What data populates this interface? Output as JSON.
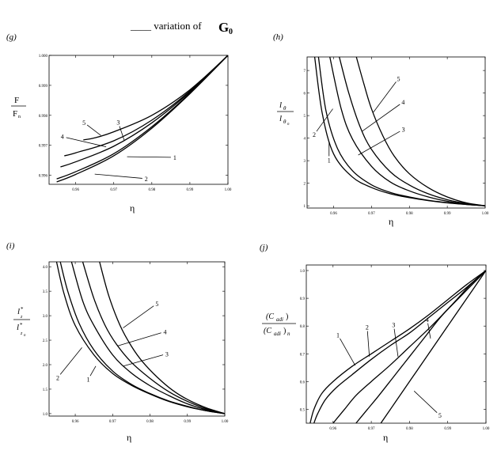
{
  "figure_title": {
    "prefix": "____ variation of ",
    "symbol": "G",
    "subscript": "0"
  },
  "chart_data": [
    {
      "panel": "(g)",
      "type": "line",
      "xlabel": "η",
      "ylabel_num": "F",
      "ylabel_den": "F",
      "ylabel_den_sub": "n",
      "xlim": [
        0.953,
        1.0
      ],
      "ylim": [
        0.9957,
        1.0
      ],
      "xticks": [
        0.96,
        0.97,
        0.98,
        0.99,
        1.0
      ],
      "xtick_labels": [
        "0.96",
        "0.97",
        "0.98",
        "0.99",
        "1.00"
      ],
      "yticks": [
        0.996,
        0.997,
        0.998,
        0.999,
        1.0
      ],
      "ytick_labels": [
        "0.996",
        "0.997",
        "0.998",
        "0.999",
        "1.000"
      ],
      "series": [
        {
          "name": "1",
          "x": [
            0.955,
            0.96,
            0.97,
            0.98,
            0.99,
            1.0
          ],
          "y": [
            0.99588,
            0.99612,
            0.99672,
            0.99762,
            0.99874,
            1.0
          ]
        },
        {
          "name": "2",
          "x": [
            0.955,
            0.96,
            0.97,
            0.98,
            0.99,
            1.0
          ],
          "y": [
            0.99578,
            0.99603,
            0.99665,
            0.99757,
            0.99872,
            1.0
          ]
        },
        {
          "name": "3",
          "x": [
            0.956,
            0.96,
            0.97,
            0.98,
            0.99,
            1.0
          ],
          "y": [
            0.99628,
            0.99645,
            0.99697,
            0.99775,
            0.99878,
            1.0
          ]
        },
        {
          "name": "4",
          "x": [
            0.957,
            0.96,
            0.97,
            0.98,
            0.99,
            1.0
          ],
          "y": [
            0.99665,
            0.99675,
            0.99715,
            0.99784,
            0.99881,
            1.0
          ]
        },
        {
          "name": "5",
          "x": [
            0.962,
            0.965,
            0.97,
            0.98,
            0.99,
            1.0
          ],
          "y": [
            0.99718,
            0.99725,
            0.99745,
            0.998,
            0.99885,
            1.0
          ]
        }
      ],
      "labels": [
        {
          "text": "1",
          "x": 0.985,
          "y": 0.9966,
          "tx": 0.9735,
          "ty": 0.99662
        },
        {
          "text": "2",
          "x": 0.9775,
          "y": 0.9959,
          "tx": 0.965,
          "ty": 0.99604
        },
        {
          "text": "3",
          "x": 0.9715,
          "y": 0.99764,
          "tx": 0.9728,
          "ty": 0.99715
        },
        {
          "text": "4",
          "x": 0.9575,
          "y": 0.99726,
          "tx": 0.968,
          "ty": 0.99695
        },
        {
          "text": "5",
          "x": 0.963,
          "y": 0.99768,
          "tx": 0.9666,
          "ty": 0.99733
        }
      ]
    },
    {
      "panel": "(h)",
      "type": "line",
      "xlabel": "η",
      "ylabel_num": "l",
      "ylabel_num_sub": "θ",
      "ylabel_den": "l",
      "ylabel_den_sub": "θ",
      "ylabel_den_subsub": "n",
      "xlim": [
        0.953,
        1.0
      ],
      "ylim": [
        0.9,
        7.6
      ],
      "xticks": [
        0.96,
        0.97,
        0.98,
        0.99,
        1.0
      ],
      "xtick_labels": [
        "0.96",
        "0.97",
        "0.98",
        "0.99",
        "1.00"
      ],
      "yticks": [
        1,
        2,
        3,
        4,
        5,
        6,
        7
      ],
      "ytick_labels": [
        "1",
        "2",
        "3",
        "4",
        "5",
        "6",
        "7"
      ],
      "series": [
        {
          "name": "1",
          "x": [
            0.955,
            0.957,
            0.96,
            0.965,
            0.97,
            0.975,
            0.98,
            0.985,
            0.99,
            0.995,
            1.0
          ],
          "y": [
            7.6,
            5.1,
            3.3,
            2.27,
            1.81,
            1.53,
            1.36,
            1.23,
            1.13,
            1.06,
            1.0
          ]
        },
        {
          "name": "2",
          "x": [
            0.956,
            0.958,
            0.961,
            0.965,
            0.97,
            0.975,
            0.98,
            0.985,
            0.99,
            0.995,
            1.0
          ],
          "y": [
            7.6,
            5.2,
            3.55,
            2.55,
            1.93,
            1.59,
            1.39,
            1.24,
            1.14,
            1.06,
            1.0
          ]
        },
        {
          "name": "3",
          "x": [
            0.959,
            0.962,
            0.965,
            0.97,
            0.975,
            0.98,
            0.985,
            0.99,
            0.995,
            1.0
          ],
          "y": [
            7.6,
            5.3,
            3.95,
            2.75,
            2.05,
            1.66,
            1.39,
            1.2,
            1.08,
            1.0
          ]
        },
        {
          "name": "4",
          "x": [
            0.9615,
            0.964,
            0.967,
            0.97,
            0.975,
            0.98,
            0.985,
            0.99,
            0.995,
            1.0
          ],
          "y": [
            7.6,
            6.0,
            4.5,
            3.5,
            2.5,
            1.92,
            1.53,
            1.27,
            1.1,
            1.0
          ]
        },
        {
          "name": "5",
          "x": [
            0.966,
            0.968,
            0.97,
            0.973,
            0.976,
            0.98,
            0.985,
            0.99,
            0.995,
            1.0
          ],
          "y": [
            7.6,
            6.4,
            5.3,
            4.1,
            3.2,
            2.42,
            1.8,
            1.39,
            1.13,
            1.0
          ]
        }
      ],
      "labels": [
        {
          "text": "1",
          "x": 0.9588,
          "y": 3.2,
          "tx": 0.9588,
          "ty": 3.85
        },
        {
          "text": "2",
          "x": 0.9555,
          "y": 4.3,
          "tx": 0.9598,
          "ty": 5.3
        },
        {
          "text": "3",
          "x": 0.9775,
          "y": 4.3,
          "tx": 0.9665,
          "ty": 3.25
        },
        {
          "text": "4",
          "x": 0.9775,
          "y": 5.5,
          "tx": 0.9675,
          "ty": 4.3
        },
        {
          "text": "5",
          "x": 0.9765,
          "y": 6.5,
          "tx": 0.9705,
          "ty": 5.15
        }
      ]
    },
    {
      "panel": "(i)",
      "type": "line",
      "xlabel": "η",
      "ylabel_num": "l",
      "ylabel_num_sup": "*",
      "ylabel_num_sub": "z",
      "ylabel_den": "l",
      "ylabel_den_sup": "*",
      "ylabel_den_sub": "z",
      "ylabel_den_subsub": "n",
      "xlim": [
        0.953,
        1.0
      ],
      "ylim": [
        0.95,
        4.1
      ],
      "xticks": [
        0.96,
        0.97,
        0.98,
        0.99,
        1.0
      ],
      "xtick_labels": [
        "0.96",
        "0.97",
        "0.98",
        "0.99",
        "1.00"
      ],
      "yticks": [
        1.0,
        1.5,
        2.0,
        2.5,
        3.0,
        3.5,
        4.0
      ],
      "ytick_labels": [
        "1.0",
        "1.5",
        "2.0",
        "2.5",
        "3.0",
        "3.5",
        "4.0"
      ],
      "series": [
        {
          "name": "1",
          "x": [
            0.955,
            0.957,
            0.96,
            0.965,
            0.97,
            0.975,
            0.98,
            0.985,
            0.99,
            0.995,
            1.0
          ],
          "y": [
            4.1,
            3.45,
            2.8,
            2.2,
            1.82,
            1.58,
            1.4,
            1.25,
            1.14,
            1.06,
            1.0
          ]
        },
        {
          "name": "2",
          "x": [
            0.956,
            0.958,
            0.961,
            0.965,
            0.97,
            0.975,
            0.98,
            0.985,
            0.99,
            0.995,
            1.0
          ],
          "y": [
            4.1,
            3.5,
            2.85,
            2.3,
            1.87,
            1.6,
            1.41,
            1.26,
            1.15,
            1.06,
            1.0
          ]
        },
        {
          "name": "3",
          "x": [
            0.959,
            0.962,
            0.965,
            0.97,
            0.975,
            0.98,
            0.985,
            0.99,
            0.995,
            1.0
          ],
          "y": [
            4.1,
            3.3,
            2.8,
            2.2,
            1.83,
            1.57,
            1.37,
            1.2,
            1.08,
            1.0
          ]
        },
        {
          "name": "4",
          "x": [
            0.962,
            0.965,
            0.968,
            0.971,
            0.975,
            0.98,
            0.985,
            0.99,
            0.995,
            1.0
          ],
          "y": [
            4.1,
            3.35,
            2.8,
            2.42,
            2.05,
            1.72,
            1.45,
            1.25,
            1.1,
            1.0
          ]
        },
        {
          "name": "5",
          "x": [
            0.9665,
            0.969,
            0.972,
            0.975,
            0.978,
            0.982,
            0.986,
            0.99,
            0.995,
            1.0
          ],
          "y": [
            4.1,
            3.4,
            2.8,
            2.38,
            2.06,
            1.74,
            1.48,
            1.29,
            1.12,
            1.0
          ]
        }
      ],
      "labels": [
        {
          "text": "1",
          "x": 0.964,
          "y": 1.77,
          "tx": 0.9655,
          "ty": 1.97
        },
        {
          "text": "2",
          "x": 0.956,
          "y": 1.8,
          "tx": 0.9618,
          "ty": 2.35
        },
        {
          "text": "3",
          "x": 0.9835,
          "y": 2.2,
          "tx": 0.9728,
          "ty": 1.97
        },
        {
          "text": "4",
          "x": 0.983,
          "y": 2.65,
          "tx": 0.9712,
          "ty": 2.38
        },
        {
          "text": "5",
          "x": 0.981,
          "y": 3.2,
          "tx": 0.9728,
          "ty": 2.75
        }
      ]
    },
    {
      "panel": "(j)",
      "type": "line",
      "xlabel": "η",
      "ylabel_num": "(C",
      "ylabel_num_sub": "adi",
      "ylabel_num_end": ")",
      "ylabel_den": "(C",
      "ylabel_den_sub": "adi",
      "ylabel_den_end": ")",
      "ylabel_den_tail": "n",
      "xlim": [
        0.953,
        1.0
      ],
      "ylim": [
        0.45,
        1.02
      ],
      "xticks": [
        0.96,
        0.97,
        0.98,
        0.99,
        1.0
      ],
      "xtick_labels": [
        "0.96",
        "0.97",
        "0.98",
        "0.99",
        "1.00"
      ],
      "yticks": [
        0.5,
        0.6,
        0.7,
        0.8,
        0.9,
        1.0
      ],
      "ytick_labels": [
        "0.5",
        "0.6",
        "0.7",
        "0.8",
        "0.9",
        "1.0"
      ],
      "series": [
        {
          "name": "1",
          "x": [
            0.954,
            0.955,
            0.957,
            0.96,
            0.965,
            0.97,
            0.975,
            0.98,
            0.985,
            0.99,
            0.995,
            1.0
          ],
          "y": [
            0.45,
            0.5,
            0.556,
            0.6,
            0.655,
            0.7,
            0.745,
            0.79,
            0.84,
            0.895,
            0.95,
            1.0
          ]
        },
        {
          "name": "2",
          "x": [
            0.955,
            0.956,
            0.958,
            0.961,
            0.965,
            0.97,
            0.975,
            0.98,
            0.985,
            0.99,
            0.995,
            1.0
          ],
          "y": [
            0.45,
            0.485,
            0.535,
            0.58,
            0.625,
            0.68,
            0.73,
            0.775,
            0.83,
            0.885,
            0.94,
            1.0
          ]
        },
        {
          "name": "3",
          "x": [
            0.96,
            0.963,
            0.966,
            0.97,
            0.975,
            0.98,
            0.985,
            0.99,
            0.995,
            1.0
          ],
          "y": [
            0.45,
            0.5,
            0.55,
            0.6,
            0.66,
            0.725,
            0.79,
            0.86,
            0.93,
            1.0
          ]
        },
        {
          "name": "4",
          "x": [
            0.966,
            0.969,
            0.972,
            0.976,
            0.98,
            0.984,
            0.988,
            0.992,
            0.996,
            1.0
          ],
          "y": [
            0.45,
            0.5,
            0.55,
            0.62,
            0.69,
            0.76,
            0.83,
            0.89,
            0.95,
            1.0
          ]
        },
        {
          "name": "5",
          "x": [
            0.9725,
            0.975,
            0.978,
            0.982,
            0.986,
            0.99,
            0.994,
            0.997,
            1.0
          ],
          "y": [
            0.45,
            0.5,
            0.56,
            0.64,
            0.72,
            0.8,
            0.88,
            0.94,
            1.0
          ]
        }
      ],
      "labels": [
        {
          "text": "1",
          "x": 0.9618,
          "y": 0.755,
          "tx": 0.9658,
          "ty": 0.658
        },
        {
          "text": "2",
          "x": 0.969,
          "y": 0.782,
          "tx": 0.9695,
          "ty": 0.69
        },
        {
          "text": "3",
          "x": 0.976,
          "y": 0.79,
          "tx": 0.977,
          "ty": 0.69
        },
        {
          "text": "4",
          "x": 0.9848,
          "y": 0.81,
          "tx": 0.9855,
          "ty": 0.755
        },
        {
          "text": "5",
          "x": 0.9872,
          "y": 0.488,
          "tx": 0.9812,
          "ty": 0.566
        }
      ]
    }
  ]
}
